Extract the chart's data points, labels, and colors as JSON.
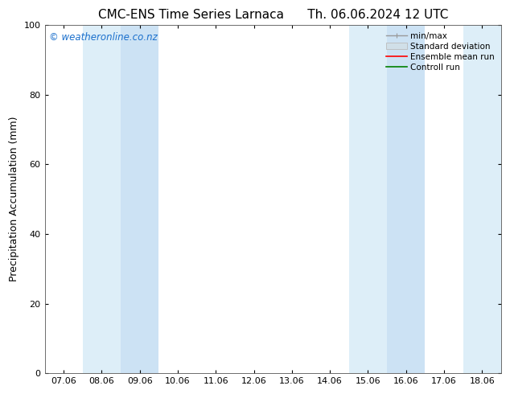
{
  "title_left": "CMC-ENS Time Series Larnaca",
  "title_right": "Th. 06.06.2024 12 UTC",
  "ylabel": "Precipitation Accumulation (mm)",
  "ylim": [
    0,
    100
  ],
  "yticks": [
    0,
    20,
    40,
    60,
    80,
    100
  ],
  "xtick_labels": [
    "07.06",
    "08.06",
    "09.06",
    "10.06",
    "11.06",
    "12.06",
    "13.06",
    "14.06",
    "15.06",
    "16.06",
    "17.06",
    "18.06"
  ],
  "xtick_positions": [
    0,
    1,
    2,
    3,
    4,
    5,
    6,
    7,
    8,
    9,
    10,
    11
  ],
  "xlim": [
    -0.5,
    11.5
  ],
  "shaded_bands": [
    {
      "xmin": 0.5,
      "xmax": 1.5,
      "color": "#ddeef8"
    },
    {
      "xmin": 1.5,
      "xmax": 2.5,
      "color": "#cce2f4"
    },
    {
      "xmin": 7.5,
      "xmax": 8.5,
      "color": "#ddeef8"
    },
    {
      "xmin": 8.5,
      "xmax": 9.5,
      "color": "#cce2f4"
    },
    {
      "xmin": 10.5,
      "xmax": 11.5,
      "color": "#ddeef8"
    }
  ],
  "legend_labels": [
    "min/max",
    "Standard deviation",
    "Ensemble mean run",
    "Controll run"
  ],
  "legend_colors_line": [
    "#999999",
    "#bbbbbb",
    "#ff0000",
    "#008000"
  ],
  "watermark": "© weatheronline.co.nz",
  "watermark_color": "#1a6fcc",
  "bg_color": "#ffffff",
  "plot_bg_color": "#ffffff",
  "border_color": "#555555",
  "title_fontsize": 11,
  "axis_fontsize": 9,
  "tick_fontsize": 8,
  "legend_fontsize": 7.5,
  "watermark_fontsize": 8.5
}
